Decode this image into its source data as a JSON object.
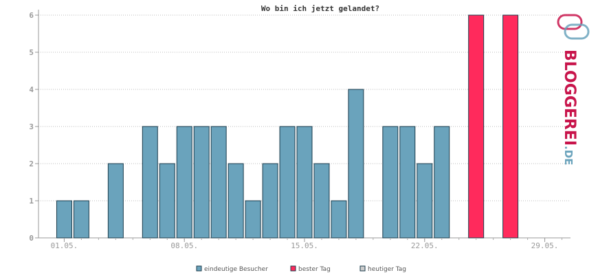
{
  "chart_data": {
    "type": "bar",
    "title": "Wo bin ich jetzt gelandet?",
    "ylim": [
      0,
      6
    ],
    "yticks": [
      0,
      1,
      2,
      3,
      4,
      5,
      6
    ],
    "grid": true,
    "x_ticks": [
      "01.05.",
      "08.05.",
      "15.05.",
      "22.05.",
      "29.05."
    ],
    "x_tick_days": [
      1,
      8,
      15,
      22,
      29
    ],
    "x_range_days": [
      0,
      31
    ],
    "series": [
      {
        "name": "eindeutige Besucher",
        "color": "#6aa3bc",
        "days": [
          1,
          2,
          4,
          6,
          7,
          8,
          9,
          10,
          11,
          12,
          13,
          14,
          15,
          16,
          17,
          18,
          20,
          21,
          22,
          23
        ],
        "values": [
          1,
          1,
          2,
          3,
          2,
          3,
          3,
          3,
          2,
          1,
          2,
          3,
          3,
          2,
          1,
          4,
          3,
          3,
          2,
          3
        ]
      },
      {
        "name": "bester Tag",
        "color": "#ff2a5c",
        "days": [
          25,
          27
        ],
        "values": [
          6,
          6
        ]
      },
      {
        "name": "heutiger Tag",
        "color": "#cccccc",
        "days": [],
        "values": []
      }
    ],
    "legend_position": "bottom"
  },
  "logo": {
    "text_main": "BLOGGEREI",
    "text_suffix": ".DE",
    "color_main": "#c8144b",
    "color_suffix": "#6aa3bc"
  }
}
